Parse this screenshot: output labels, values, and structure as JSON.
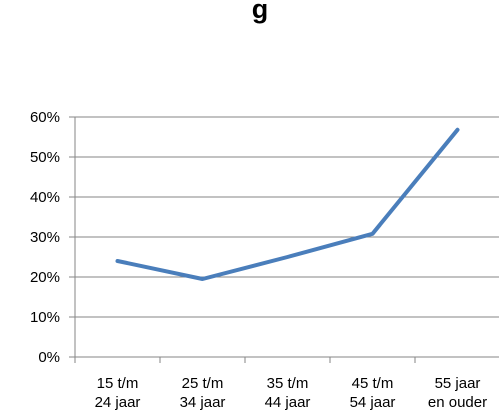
{
  "title": "g",
  "chart_data": {
    "type": "line",
    "categories": [
      [
        "15 t/m",
        "24 jaar"
      ],
      [
        "25 t/m",
        "34 jaar"
      ],
      [
        "35 t/m",
        "44 jaar"
      ],
      [
        "45 t/m",
        "54 jaar"
      ],
      [
        "55 jaar",
        "en ouder"
      ]
    ],
    "series": [
      {
        "values": [
          24,
          19.5,
          25,
          30.8,
          56.8
        ],
        "color": "#4a7ebb"
      }
    ],
    "y_ticks": [
      "0%",
      "10%",
      "20%",
      "30%",
      "40%",
      "50%",
      "60%"
    ],
    "ylim": [
      0,
      60
    ],
    "grid": true,
    "gridline_color": "#868686"
  }
}
